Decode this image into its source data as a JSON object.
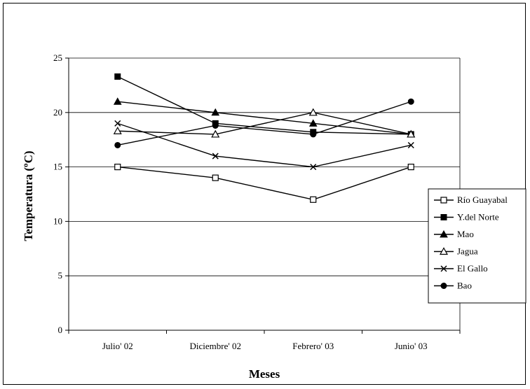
{
  "chart_data": {
    "type": "line",
    "title": "",
    "xlabel": "Meses",
    "ylabel": "Temperatura (ºC)",
    "ylim": [
      0,
      25
    ],
    "yticks": [
      0,
      5,
      10,
      15,
      20,
      25
    ],
    "grid": "horizontal",
    "legend_position": "right",
    "categories": [
      "Julio' 02",
      "Diciembre' 02",
      "Febrero' 03",
      "Junio' 03"
    ],
    "series": [
      {
        "name": "Río Guayabal",
        "marker": "square-open",
        "values": [
          15,
          14,
          12,
          15
        ]
      },
      {
        "name": "Y.del Norte",
        "marker": "square-filled",
        "values": [
          23.3,
          19,
          18.2,
          18
        ]
      },
      {
        "name": "Mao",
        "marker": "triangle-filled",
        "values": [
          21,
          20,
          19,
          18
        ]
      },
      {
        "name": "Jagua",
        "marker": "triangle-open",
        "values": [
          18.3,
          18,
          20,
          18
        ]
      },
      {
        "name": "El Gallo",
        "marker": "x",
        "values": [
          19,
          16,
          15,
          17
        ]
      },
      {
        "name": "Bao",
        "marker": "circle-filled",
        "values": [
          17,
          18.8,
          18,
          21
        ]
      }
    ]
  }
}
